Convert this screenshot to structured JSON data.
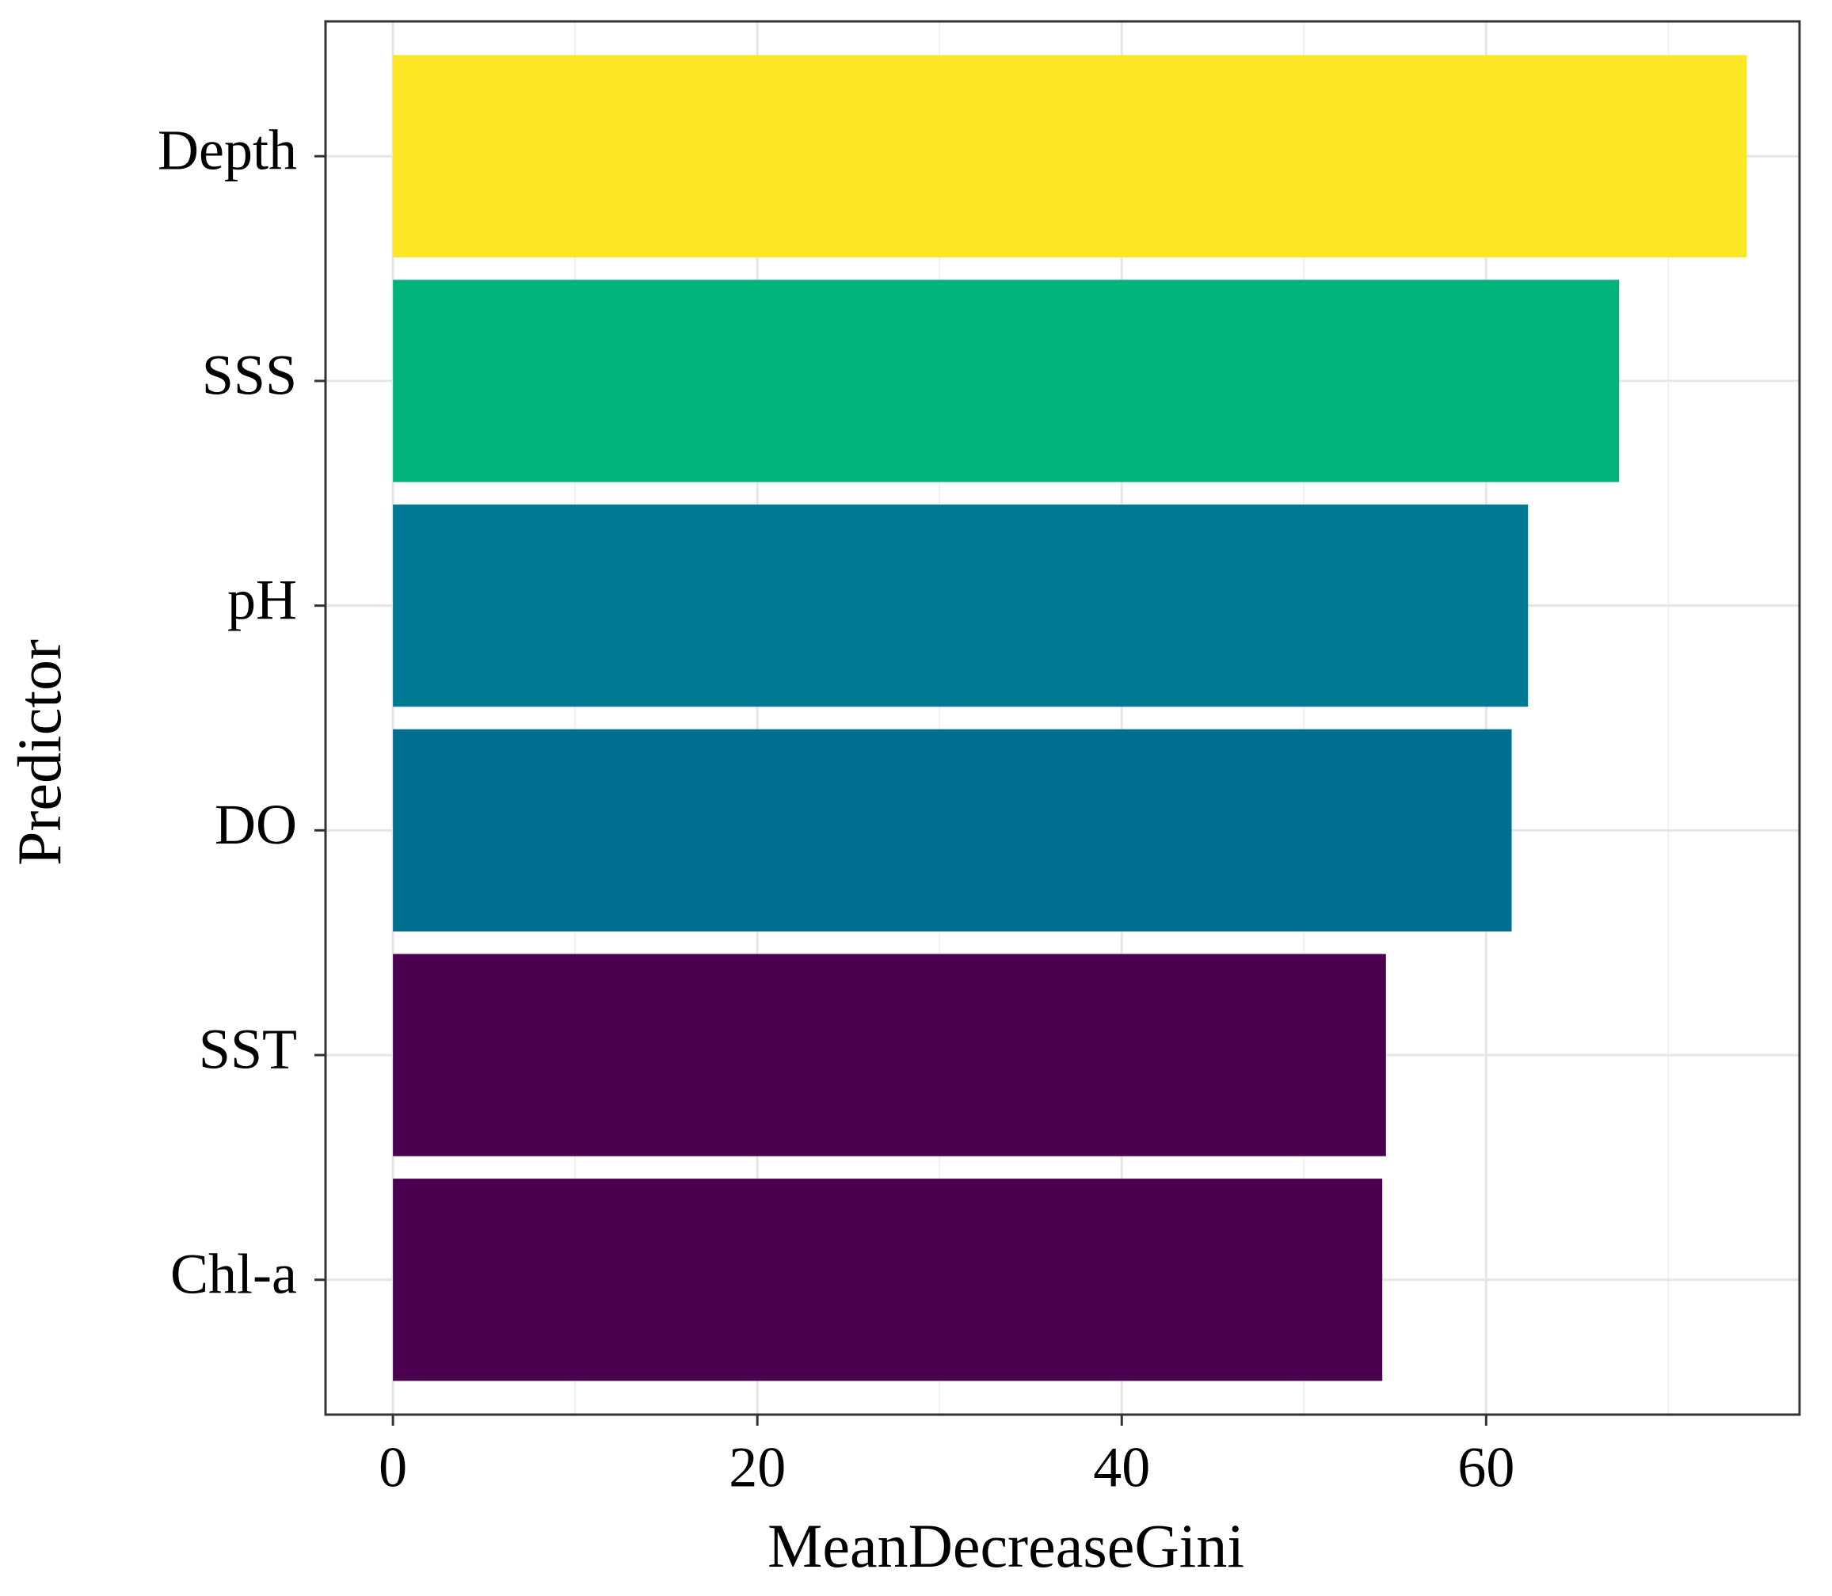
{
  "chart_data": {
    "type": "bar",
    "orientation": "horizontal",
    "x_label": "MeanDecreaseGini",
    "y_label": "Predictor",
    "categories": [
      "Depth",
      "SSS",
      "pH",
      "DO",
      "SST",
      "Chl-a"
    ],
    "values": [
      74.3,
      67.3,
      62.3,
      61.4,
      54.5,
      54.3
    ],
    "colors": [
      "#fde725",
      "#00b37a",
      "#007a94",
      "#006e8f",
      "#4b004f",
      "#4b004f"
    ],
    "xlim": [
      -3.7,
      77.2
    ],
    "xticks": [
      0,
      20,
      40,
      60
    ],
    "xminorticks": [
      10,
      30,
      50,
      70
    ],
    "grid": true
  }
}
